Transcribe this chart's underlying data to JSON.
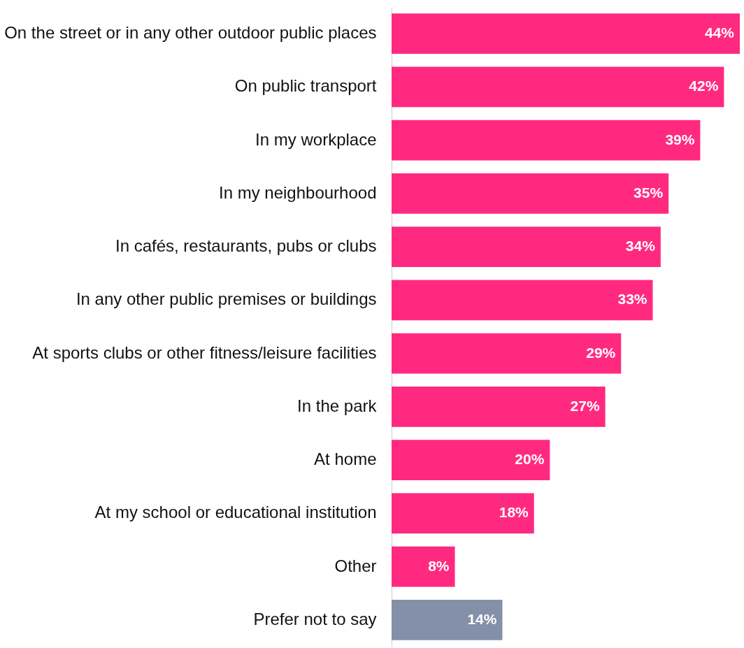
{
  "chart_data": {
    "type": "bar",
    "orientation": "horizontal",
    "categories": [
      "On the street or in any other outdoor public places",
      "On public transport",
      "In my workplace",
      "In my neighbourhood",
      "In cafés, restaurants, pubs or clubs",
      "In any other public premises or buildings",
      "At sports clubs or other fitness/leisure facilities",
      "In the park",
      "At home",
      "At my school or educational institution",
      "Other",
      "Prefer not to say"
    ],
    "values": [
      44,
      42,
      39,
      35,
      34,
      33,
      29,
      27,
      20,
      18,
      8,
      14
    ],
    "value_labels": [
      "44%",
      "42%",
      "39%",
      "35%",
      "34%",
      "33%",
      "29%",
      "27%",
      "20%",
      "18%",
      "8%",
      "14%"
    ],
    "colors": [
      "#ff2a7f",
      "#ff2a7f",
      "#ff2a7f",
      "#ff2a7f",
      "#ff2a7f",
      "#ff2a7f",
      "#ff2a7f",
      "#ff2a7f",
      "#ff2a7f",
      "#ff2a7f",
      "#ff2a7f",
      "#8490a8"
    ],
    "xlim": [
      0,
      44
    ],
    "grid": false
  }
}
